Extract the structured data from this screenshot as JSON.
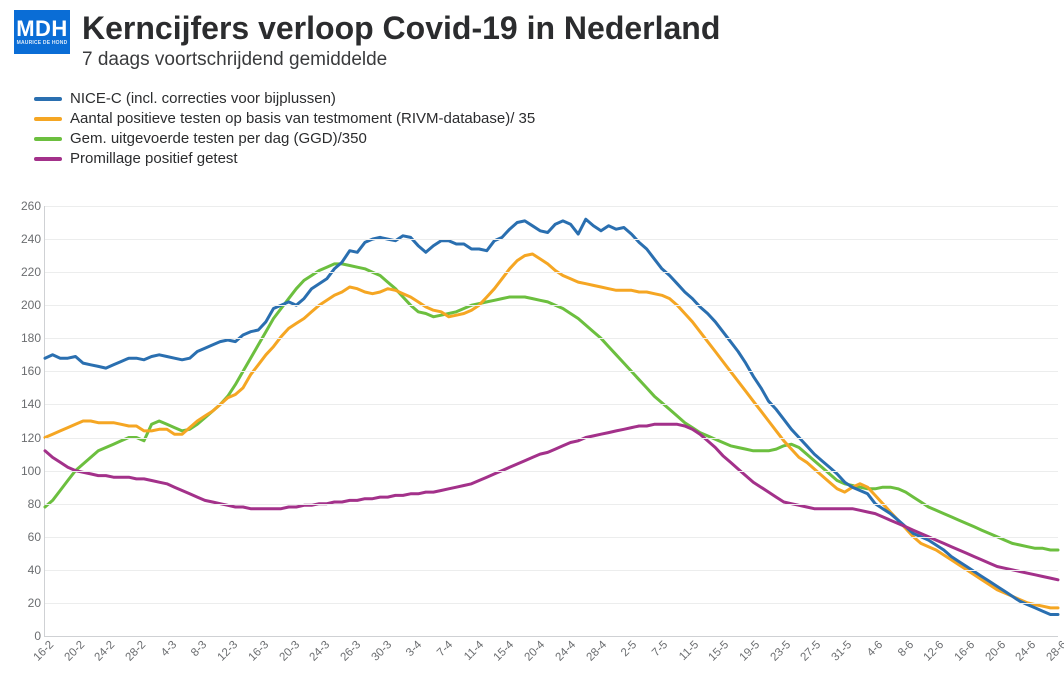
{
  "logo": {
    "main": "MDH",
    "sub": "MAURICE DE HOND"
  },
  "title": "Kerncijfers verloop Covid-19 in Nederland",
  "subtitle": "7 daags voortschrijdend gemiddelde",
  "chart": {
    "type": "line",
    "background_color": "#ffffff",
    "axis_color": "#cfd1d4",
    "grid_color": "#eceded",
    "tick_label_color": "#6b6d70",
    "tick_fontsize": 12,
    "line_width": 3,
    "ylim": [
      0,
      260
    ],
    "ytick_step": 20,
    "yticks": [
      0,
      20,
      40,
      60,
      80,
      100,
      120,
      140,
      160,
      180,
      200,
      220,
      240,
      260
    ],
    "x_labels": [
      "16-2",
      "20-2",
      "24-2",
      "28-2",
      "4-3",
      "8-3",
      "12-3",
      "16-3",
      "20-3",
      "24-3",
      "26-3",
      "30-3",
      "3-4",
      "7-4",
      "11-4",
      "15-4",
      "20-4",
      "24-4",
      "28-4",
      "2-5",
      "7-5",
      "11-5",
      "15-5",
      "19-5",
      "23-5",
      "27-5",
      "31-5",
      "4-6",
      "8-6",
      "12-6",
      "16-6",
      "20-6",
      "24-6",
      "28-6"
    ],
    "n_points": 134,
    "legend": [
      {
        "label": "NICE-C (incl. correcties voor bijplussen)",
        "color": "#2a6fb0"
      },
      {
        "label": "Aantal positieve testen op basis van testmoment (RIVM-database)/ 35",
        "color": "#f5a623"
      },
      {
        "label": "Gem. uitgevoerde testen per dag (GGD)/350",
        "color": "#6cbf3f"
      },
      {
        "label": "Promillage positief getest",
        "color": "#a3318a"
      }
    ],
    "series": {
      "nice_c": {
        "color": "#2a6fb0",
        "values": [
          168,
          170,
          168,
          168,
          169,
          165,
          164,
          163,
          162,
          164,
          166,
          168,
          168,
          167,
          169,
          170,
          169,
          168,
          167,
          168,
          172,
          174,
          176,
          178,
          179,
          178,
          182,
          184,
          185,
          190,
          198,
          200,
          202,
          200,
          204,
          210,
          213,
          216,
          222,
          226,
          233,
          232,
          238,
          240,
          241,
          240,
          239,
          242,
          241,
          236,
          232,
          236,
          239,
          239,
          237,
          237,
          234,
          234,
          233,
          239,
          241,
          246,
          250,
          251,
          248,
          245,
          244,
          249,
          251,
          249,
          243,
          252,
          248,
          245,
          248,
          246,
          247,
          243,
          238,
          234,
          228,
          222,
          218,
          213,
          208,
          204,
          199,
          195,
          190,
          184,
          178,
          172,
          165,
          157,
          150,
          142,
          137,
          131,
          125,
          120,
          115,
          110,
          106,
          102,
          98,
          93,
          90,
          88,
          86,
          80,
          77,
          74,
          70,
          66,
          62,
          60,
          58,
          55,
          52,
          48,
          45,
          42,
          39,
          36,
          33,
          30,
          27,
          24,
          21,
          19,
          17,
          15,
          13,
          13
        ]
      },
      "pos_tests": {
        "color": "#f5a623",
        "values": [
          120,
          122,
          124,
          126,
          128,
          130,
          130,
          129,
          129,
          129,
          128,
          127,
          127,
          124,
          124,
          125,
          125,
          122,
          122,
          126,
          130,
          133,
          136,
          140,
          144,
          146,
          150,
          158,
          164,
          170,
          175,
          181,
          186,
          189,
          192,
          196,
          200,
          203,
          206,
          208,
          211,
          210,
          208,
          207,
          208,
          210,
          209,
          207,
          205,
          202,
          199,
          197,
          196,
          193,
          194,
          195,
          197,
          200,
          205,
          210,
          216,
          222,
          227,
          230,
          231,
          228,
          225,
          221,
          218,
          216,
          214,
          213,
          212,
          211,
          210,
          209,
          209,
          209,
          208,
          208,
          207,
          206,
          204,
          200,
          195,
          190,
          184,
          178,
          172,
          166,
          160,
          154,
          148,
          142,
          136,
          130,
          124,
          118,
          113,
          108,
          105,
          101,
          97,
          93,
          89,
          87,
          90,
          92,
          90,
          85,
          80,
          75,
          70,
          65,
          60,
          56,
          54,
          52,
          49,
          46,
          43,
          40,
          37,
          34,
          31,
          28,
          26,
          24,
          22,
          20,
          19,
          18,
          17,
          17
        ]
      },
      "ggd_tests": {
        "color": "#6cbf3f",
        "values": [
          78,
          82,
          88,
          94,
          100,
          104,
          108,
          112,
          114,
          116,
          118,
          120,
          120,
          118,
          128,
          130,
          128,
          126,
          124,
          125,
          128,
          132,
          136,
          140,
          145,
          152,
          160,
          168,
          176,
          184,
          192,
          198,
          204,
          210,
          215,
          218,
          221,
          223,
          225,
          225,
          224,
          223,
          222,
          220,
          218,
          214,
          210,
          205,
          200,
          196,
          195,
          193,
          194,
          195,
          196,
          198,
          200,
          201,
          202,
          203,
          204,
          205,
          205,
          205,
          204,
          203,
          202,
          200,
          198,
          195,
          192,
          188,
          184,
          180,
          175,
          170,
          165,
          160,
          155,
          150,
          145,
          141,
          137,
          133,
          129,
          126,
          123,
          121,
          119,
          117,
          115,
          114,
          113,
          112,
          112,
          112,
          113,
          115,
          116,
          114,
          110,
          106,
          102,
          98,
          94,
          92,
          91,
          90,
          89,
          89,
          90,
          90,
          89,
          87,
          84,
          81,
          78,
          76,
          74,
          72,
          70,
          68,
          66,
          64,
          62,
          60,
          58,
          56,
          55,
          54,
          53,
          53,
          52,
          52
        ]
      },
      "promillage": {
        "color": "#a3318a",
        "values": [
          112,
          108,
          105,
          102,
          100,
          99,
          98,
          97,
          97,
          96,
          96,
          96,
          95,
          95,
          94,
          93,
          92,
          90,
          88,
          86,
          84,
          82,
          81,
          80,
          79,
          78,
          78,
          77,
          77,
          77,
          77,
          77,
          78,
          78,
          79,
          79,
          80,
          80,
          81,
          81,
          82,
          82,
          83,
          83,
          84,
          84,
          85,
          85,
          86,
          86,
          87,
          87,
          88,
          89,
          90,
          91,
          92,
          94,
          96,
          98,
          100,
          102,
          104,
          106,
          108,
          110,
          111,
          113,
          115,
          117,
          118,
          120,
          121,
          122,
          123,
          124,
          125,
          126,
          127,
          127,
          128,
          128,
          128,
          128,
          127,
          125,
          122,
          118,
          114,
          109,
          105,
          101,
          97,
          93,
          90,
          87,
          84,
          81,
          80,
          79,
          78,
          77,
          77,
          77,
          77,
          77,
          77,
          76,
          75,
          74,
          72,
          70,
          68,
          66,
          64,
          62,
          60,
          58,
          56,
          54,
          52,
          50,
          48,
          46,
          44,
          42,
          41,
          40,
          39,
          38,
          37,
          36,
          35,
          34
        ]
      }
    }
  }
}
